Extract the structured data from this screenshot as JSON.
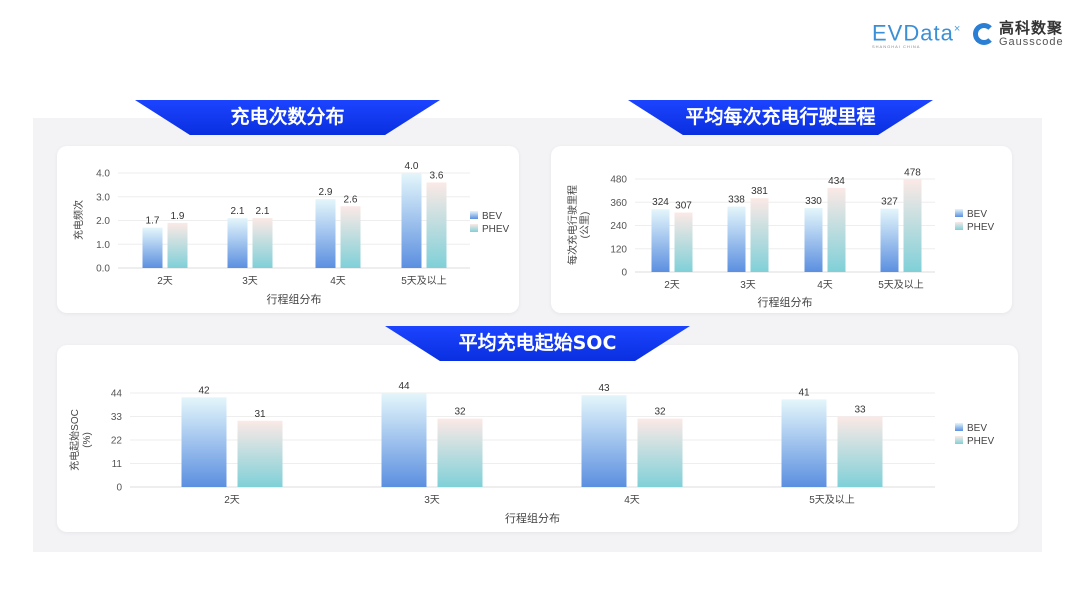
{
  "header": {
    "logo_evdata": "EVData",
    "logo_evdata_sub": "SHANGHAI CHINA",
    "logo_gauss_cn": "高科数聚",
    "logo_gauss_en": "Gausscode"
  },
  "banners": {
    "freq": "充电次数分布",
    "distance": "平均每次充电行驶里程",
    "soc": "平均充电起始SOC"
  },
  "colors": {
    "banner": "#1237f5",
    "bev_bottom": "#5b8fe0",
    "bev_top": "#e4f6fb",
    "phev_bottom": "#7fd0d8",
    "phev_top": "#fbe9e6"
  },
  "chart_data": [
    {
      "type": "bar",
      "categories": [
        "2天",
        "3天",
        "4天",
        "5天及以上"
      ],
      "series": [
        {
          "name": "BEV",
          "values": [
            1.7,
            2.1,
            2.9,
            4.0
          ]
        },
        {
          "name": "PHEV",
          "values": [
            1.9,
            2.1,
            2.6,
            3.6
          ]
        }
      ],
      "data_labels": [
        [
          "1.7",
          "2.1",
          "2.9",
          "4.0"
        ],
        [
          "1.9",
          "2.1",
          "2.6",
          "3.6"
        ]
      ],
      "xlabel": "行程组分布",
      "ylabel": "充电频次",
      "ylim": [
        0,
        4
      ],
      "yticks": [
        "0.0",
        "1.0",
        "2.0",
        "3.0",
        "4.0"
      ],
      "grid": true,
      "legend": "right"
    },
    {
      "type": "bar",
      "categories": [
        "2天",
        "3天",
        "4天",
        "5天及以上"
      ],
      "series": [
        {
          "name": "BEV",
          "values": [
            324,
            338,
            330,
            327
          ]
        },
        {
          "name": "PHEV",
          "values": [
            307,
            381,
            434,
            478
          ]
        }
      ],
      "data_labels": [
        [
          "324",
          "338",
          "330",
          "327"
        ],
        [
          "307",
          "381",
          "434",
          "478"
        ]
      ],
      "xlabel": "行程组分布",
      "ylabel": "每次充电行驶里程",
      "ylabel2": "(公里)",
      "ylim": [
        0,
        480
      ],
      "yticks": [
        "0",
        "120",
        "240",
        "360",
        "480"
      ],
      "grid": true,
      "legend": "right"
    },
    {
      "type": "bar",
      "categories": [
        "2天",
        "3天",
        "4天",
        "5天及以上"
      ],
      "series": [
        {
          "name": "BEV",
          "values": [
            42,
            44,
            43,
            41
          ]
        },
        {
          "name": "PHEV",
          "values": [
            31,
            32,
            32,
            33
          ]
        }
      ],
      "data_labels": [
        [
          "42",
          "44",
          "43",
          "41"
        ],
        [
          "31",
          "32",
          "32",
          "33"
        ]
      ],
      "xlabel": "行程组分布",
      "ylabel": "充电起始SOC",
      "ylabel2": "(%)",
      "ylim": [
        0,
        44
      ],
      "yticks": [
        "0",
        "11",
        "22",
        "33",
        "44"
      ],
      "grid": true,
      "legend": "right"
    }
  ]
}
